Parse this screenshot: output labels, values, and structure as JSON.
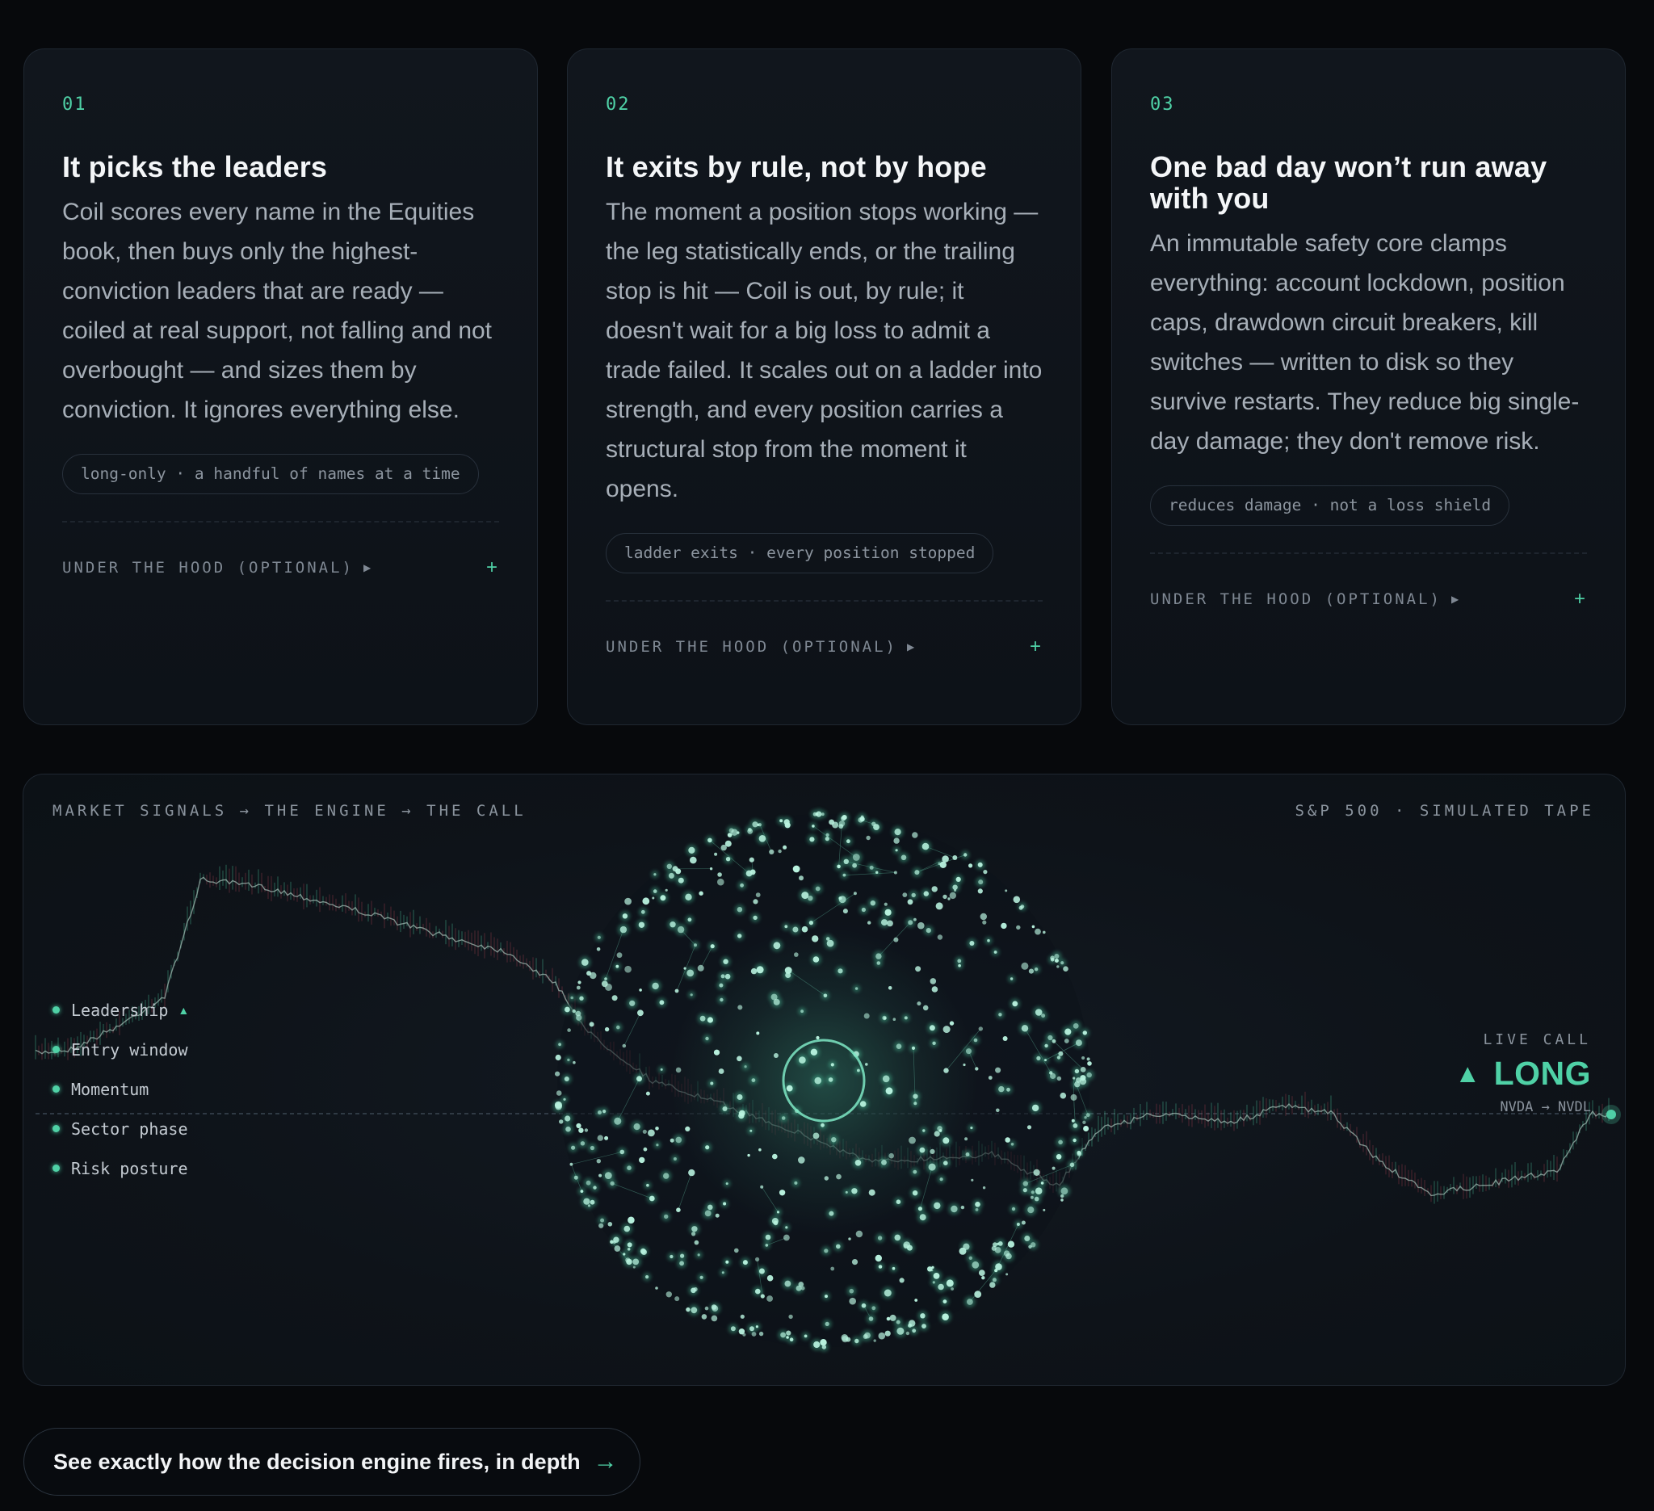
{
  "cards": [
    {
      "num": "01",
      "title": "It picks the leaders",
      "body": "Coil scores every name in the Equities book, then buys only the highest-conviction leaders that are ready — coiled at real support, not falling and not overbought — and sizes them by conviction. It ignores everything else.",
      "tag": "long-only · a handful of names at a time",
      "hood": "UNDER THE HOOD (OPTIONAL)"
    },
    {
      "num": "02",
      "title": "It exits by rule, not by hope",
      "body": "The moment a position stops working — the leg statistically ends, or the trailing stop is hit — Coil is out, by rule; it doesn't wait for a big loss to admit a trade failed. It scales out on a ladder into strength, and every position carries a structural stop from the moment it opens.",
      "tag": "ladder exits · every position stopped",
      "hood": "UNDER THE HOOD (OPTIONAL)"
    },
    {
      "num": "03",
      "title": "One bad day won’t run away with you",
      "body": "An immutable safety core clamps everything: account lockdown, position caps, drawdown circuit breakers, kill switches — written to disk so they survive restarts. They reduce big single-day damage; they don't remove risk.",
      "tag": "reduces damage · not a loss shield",
      "hood": "UNDER THE HOOD (OPTIONAL)"
    }
  ],
  "panel": {
    "flow_caption": "MARKET SIGNALS → THE ENGINE → THE CALL",
    "tape_caption": "S&P 500 · SIMULATED TAPE",
    "signals": [
      "Leadership",
      "Entry window",
      "Momentum",
      "Sector phase",
      "Risk posture"
    ],
    "leadership_arrow": "▲",
    "live_call_label": "LIVE CALL",
    "live_call_arrow": "▲",
    "live_call_value": "LONG",
    "live_call_symbols": "NVDA → NVDL",
    "colors": {
      "accent": "#4fd1a6",
      "down": "#c0475a"
    }
  },
  "cta": {
    "label": "See exactly how the decision engine fires, in depth",
    "arrow": "→"
  },
  "icons": {
    "expand": "plus-icon",
    "disclosure": "caret-right-icon",
    "cta": "arrow-right-icon"
  }
}
